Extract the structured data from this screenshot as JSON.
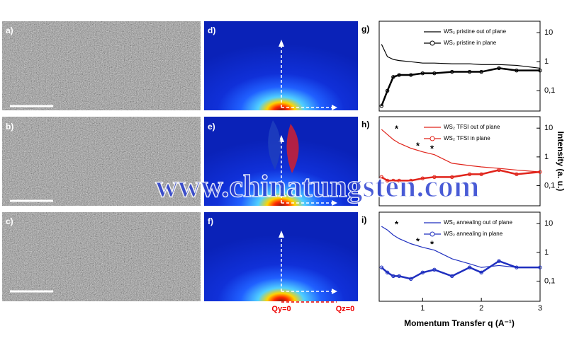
{
  "figure": {
    "panel_labels": [
      "a)",
      "b)",
      "c)",
      "d)",
      "e)",
      "f)"
    ],
    "qy_label": "Qy=0",
    "qz_label": "Qz=0",
    "x_label": "Momentum Transfer q (A⁻¹)",
    "y_label": "Intensity (a. u.)",
    "watermark": "www.chinatungsten.com"
  },
  "chart_data": [
    {
      "type": "line",
      "panel_label": "g)",
      "log_y": true,
      "legend": "upper right",
      "x": [
        0.3,
        0.4,
        0.5,
        0.6,
        0.8,
        1.0,
        1.2,
        1.5,
        1.8,
        2.0,
        2.3,
        2.6,
        3.0
      ],
      "xlim": [
        0.26,
        3
      ],
      "ylim": [
        0.02,
        25
      ],
      "yticks": [
        {
          "value": 10,
          "label": "10"
        },
        {
          "value": 1,
          "label": "1"
        },
        {
          "value": 0.1,
          "label": "0,1"
        }
      ],
      "series": [
        {
          "name": "WS₂ pristine out of plane",
          "color": "#000000",
          "marker": "none",
          "values": [
            4,
            1.5,
            1.2,
            1.1,
            1.0,
            0.9,
            0.9,
            0.85,
            0.85,
            0.8,
            0.8,
            0.75,
            0.6
          ]
        },
        {
          "name": "WS₂ pristine in plane",
          "color": "#000000",
          "marker": "circle",
          "values": [
            0.03,
            0.1,
            0.3,
            0.35,
            0.35,
            0.4,
            0.4,
            0.45,
            0.45,
            0.45,
            0.6,
            0.5,
            0.5
          ]
        }
      ]
    },
    {
      "type": "line",
      "panel_label": "h)",
      "log_y": true,
      "legend": "upper right",
      "x": [
        0.3,
        0.4,
        0.5,
        0.6,
        0.8,
        1.0,
        1.2,
        1.5,
        1.8,
        2.0,
        2.3,
        2.6,
        3.0
      ],
      "xlim": [
        0.26,
        3
      ],
      "ylim": [
        0.02,
        25
      ],
      "yticks": [
        {
          "value": 10,
          "label": "10"
        },
        {
          "value": 1,
          "label": "1"
        },
        {
          "value": 0.1,
          "label": "0,1"
        }
      ],
      "annotations": [
        "*",
        "*",
        "*"
      ],
      "series": [
        {
          "name": "WS₂ TFSI out of plane",
          "color": "#e0241b",
          "marker": "none",
          "values": [
            9,
            6,
            4,
            3,
            2,
            1.5,
            1.2,
            0.6,
            0.5,
            0.45,
            0.4,
            0.35,
            0.3
          ]
        },
        {
          "name": "WS₂ TFSI in plane",
          "color": "#e0241b",
          "marker": "circle",
          "values": [
            0.2,
            0.15,
            0.15,
            0.15,
            0.15,
            0.18,
            0.2,
            0.2,
            0.25,
            0.25,
            0.35,
            0.25,
            0.3
          ]
        }
      ]
    },
    {
      "type": "line",
      "panel_label": "i)",
      "log_y": true,
      "legend": "upper right",
      "x": [
        0.3,
        0.4,
        0.5,
        0.6,
        0.8,
        1.0,
        1.2,
        1.5,
        1.8,
        2.0,
        2.3,
        2.6,
        3.0
      ],
      "xlim": [
        0.26,
        3
      ],
      "ylim": [
        0.02,
        25
      ],
      "yticks": [
        {
          "value": 10,
          "label": "10"
        },
        {
          "value": 1,
          "label": "1"
        },
        {
          "value": 0.1,
          "label": "0,1"
        }
      ],
      "xticks": [
        1,
        2,
        3
      ],
      "annotations": [
        "*",
        "*",
        "*"
      ],
      "series": [
        {
          "name": "WS₂ annealing out of plane",
          "color": "#1f2fbf",
          "marker": "none",
          "values": [
            8,
            6,
            4,
            3,
            2,
            1.5,
            1.2,
            0.6,
            0.4,
            0.3,
            0.35,
            0.3,
            0.3
          ]
        },
        {
          "name": "WS₂ annealing in plane",
          "color": "#1f2fbf",
          "marker": "circle",
          "values": [
            0.3,
            0.2,
            0.15,
            0.15,
            0.12,
            0.2,
            0.25,
            0.15,
            0.3,
            0.2,
            0.5,
            0.3,
            0.3
          ]
        }
      ]
    }
  ]
}
